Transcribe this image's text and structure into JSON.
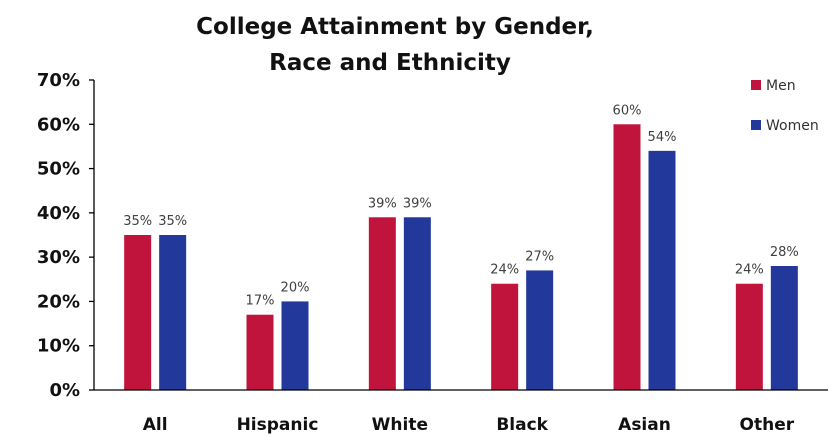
{
  "chart_data": {
    "type": "bar",
    "title_lines": [
      "College Attainment  by Gender,",
      "Race and Ethnicity"
    ],
    "categories": [
      "All",
      "Hispanic",
      "White",
      "Black",
      "Asian",
      "Other"
    ],
    "series": [
      {
        "name": "Men",
        "color": "#C0143C",
        "values": [
          35,
          17,
          39,
          24,
          60,
          24
        ],
        "labels": [
          "35%",
          "17%",
          "39%",
          "24%",
          "60%",
          "24%"
        ]
      },
      {
        "name": "Women",
        "color": "#22389A",
        "values": [
          35,
          20,
          39,
          27,
          54,
          28
        ],
        "labels": [
          "35%",
          "20%",
          "39%",
          "27%",
          "54%",
          "28%"
        ]
      }
    ],
    "ylim": [
      0,
      70
    ],
    "yticks": [
      0,
      10,
      20,
      30,
      40,
      50,
      60,
      70
    ],
    "ytick_labels": [
      "0%",
      "10%",
      "20%",
      "30%",
      "40%",
      "50%",
      "60%",
      "70%"
    ],
    "xlabel": "",
    "ylabel": "",
    "grid": false,
    "legend_position": "top-right"
  }
}
